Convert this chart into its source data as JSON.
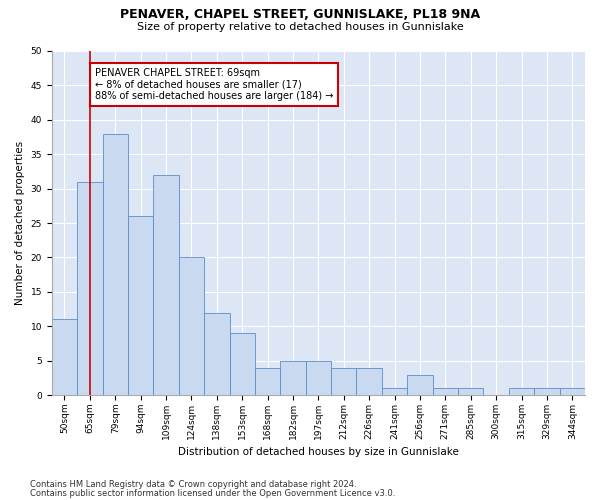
{
  "title": "PENAVER, CHAPEL STREET, GUNNISLAKE, PL18 9NA",
  "subtitle": "Size of property relative to detached houses in Gunnislake",
  "xlabel": "Distribution of detached houses by size in Gunnislake",
  "ylabel": "Number of detached properties",
  "categories": [
    "50sqm",
    "65sqm",
    "79sqm",
    "94sqm",
    "109sqm",
    "124sqm",
    "138sqm",
    "153sqm",
    "168sqm",
    "182sqm",
    "197sqm",
    "212sqm",
    "226sqm",
    "241sqm",
    "256sqm",
    "271sqm",
    "285sqm",
    "300sqm",
    "315sqm",
    "329sqm",
    "344sqm"
  ],
  "values": [
    11,
    31,
    38,
    26,
    32,
    20,
    12,
    9,
    4,
    5,
    5,
    4,
    4,
    1,
    3,
    1,
    1,
    0,
    1,
    1,
    1
  ],
  "bar_color": "#c9daf0",
  "bar_edge_color": "#5b8dc8",
  "bar_edge_width": 0.6,
  "vline_x": 1,
  "vline_color": "#cc0000",
  "annotation_text": "PENAVER CHAPEL STREET: 69sqm\n← 8% of detached houses are smaller (17)\n88% of semi-detached houses are larger (184) →",
  "annotation_box_color": "#ffffff",
  "annotation_box_edge_color": "#cc0000",
  "ylim": [
    0,
    50
  ],
  "yticks": [
    0,
    5,
    10,
    15,
    20,
    25,
    30,
    35,
    40,
    45,
    50
  ],
  "footer1": "Contains HM Land Registry data © Crown copyright and database right 2024.",
  "footer2": "Contains public sector information licensed under the Open Government Licence v3.0.",
  "plot_bg_color": "#dce6f5",
  "grid_color": "#ffffff",
  "title_fontsize": 9,
  "subtitle_fontsize": 8,
  "axis_label_fontsize": 7.5,
  "tick_fontsize": 6.5,
  "annotation_fontsize": 7,
  "footer_fontsize": 6
}
